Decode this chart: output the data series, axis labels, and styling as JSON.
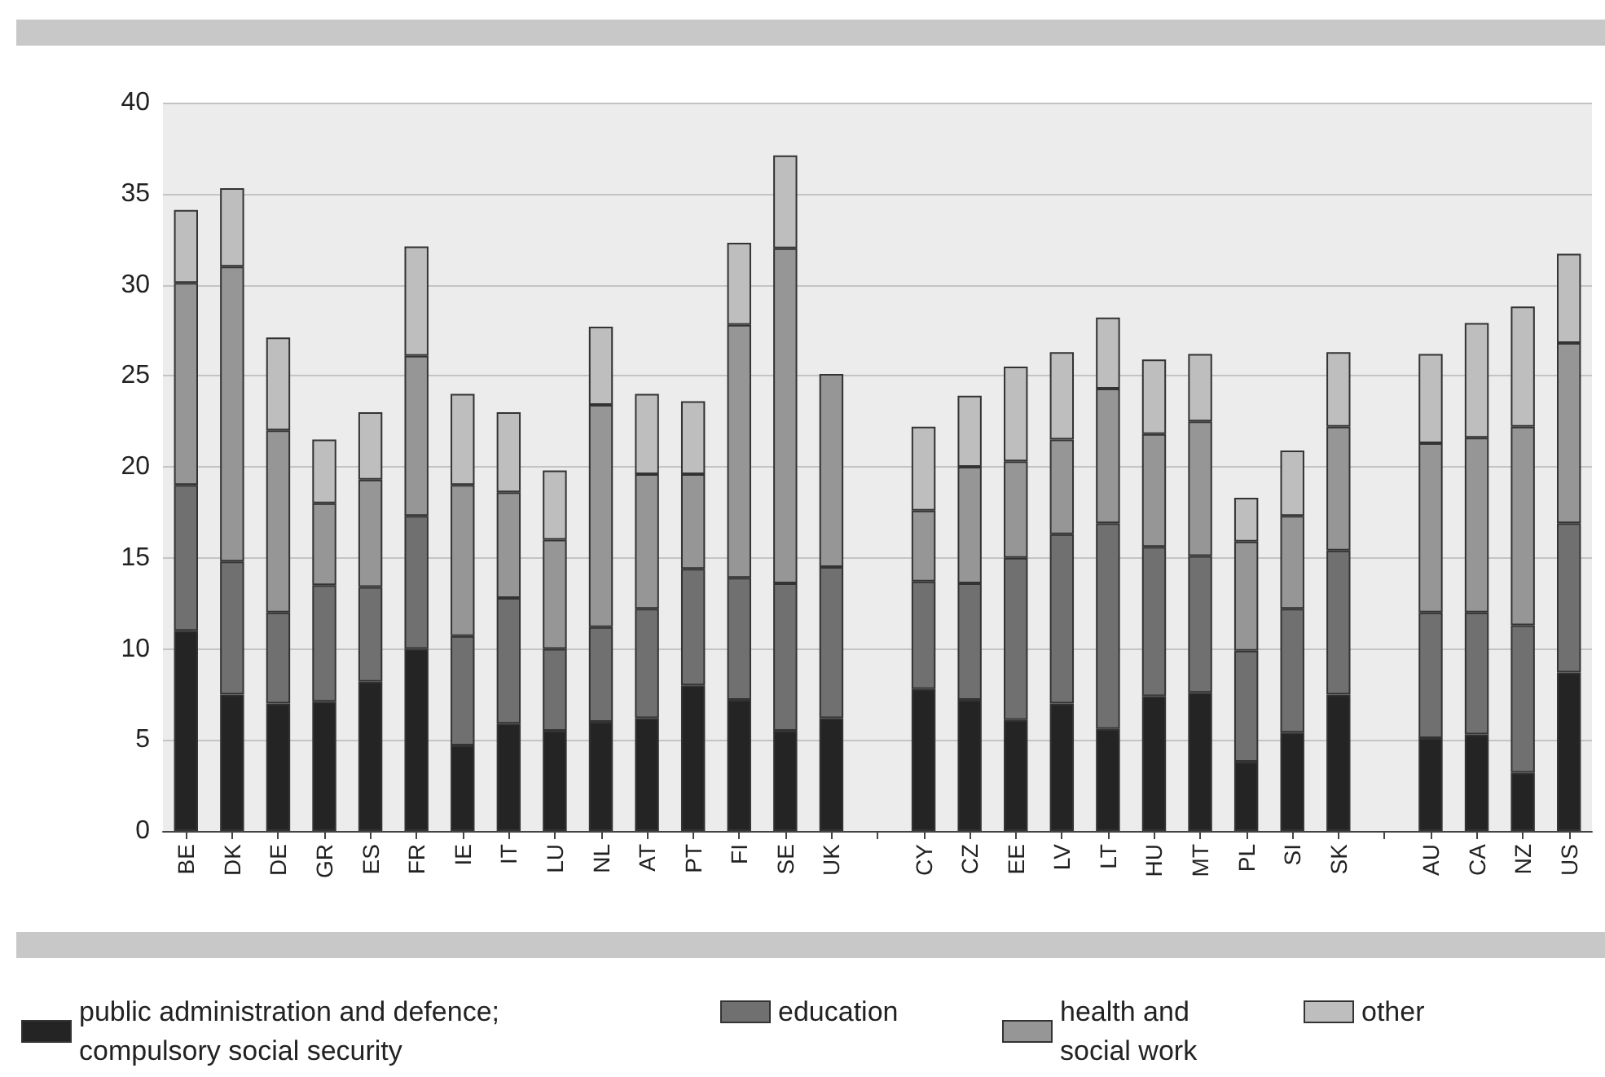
{
  "chart_data": {
    "type": "bar",
    "stacked": true,
    "categories": [
      "BE",
      "DK",
      "DE",
      "GR",
      "ES",
      "FR",
      "IE",
      "IT",
      "LU",
      "NL",
      "AT",
      "PT",
      "FI",
      "SE",
      "UK",
      null,
      "CY",
      "CZ",
      "EE",
      "LV",
      "LT",
      "HU",
      "MT",
      "PL",
      "SI",
      "SK",
      null,
      "AU",
      "CA",
      "NZ",
      "US"
    ],
    "series": [
      {
        "name": "public administration and defence; compulsory social security",
        "color": "#242424",
        "values": [
          11,
          7.5,
          7,
          7.1,
          8.2,
          10,
          4.7,
          5.9,
          5.5,
          6,
          6.2,
          8,
          7.2,
          5.5,
          6.2,
          null,
          7.8,
          7.2,
          6.1,
          7,
          5.6,
          7.4,
          7.6,
          3.8,
          5.4,
          7.5,
          null,
          5.1,
          5.3,
          3.2,
          8.7
        ]
      },
      {
        "name": "education",
        "color": "#707070",
        "values": [
          8,
          7.3,
          5,
          6.4,
          5.2,
          7.3,
          6,
          6.9,
          4.5,
          5.2,
          6,
          6.4,
          6.7,
          8.1,
          8.3,
          null,
          5.9,
          6.4,
          8.9,
          9.3,
          11.3,
          8.2,
          7.5,
          6.1,
          6.8,
          7.9,
          null,
          6.9,
          6.7,
          8.1,
          8.2
        ]
      },
      {
        "name": "health and social work",
        "color": "#969696",
        "values": [
          11.1,
          16.2,
          10,
          4.5,
          5.9,
          8.8,
          8.3,
          5.8,
          6,
          12.2,
          7.4,
          5.2,
          13.9,
          18.4,
          10.6,
          null,
          3.9,
          6.4,
          5.3,
          5.2,
          7.4,
          6.2,
          7.4,
          6,
          5.1,
          6.8,
          null,
          9.3,
          9.6,
          10.9,
          9.9
        ]
      },
      {
        "name": "other",
        "color": "#bebebe",
        "values": [
          4,
          4.3,
          5.1,
          3.5,
          3.7,
          6,
          5,
          4.4,
          3.8,
          4.3,
          4.4,
          4,
          4.5,
          5.1,
          null,
          null,
          4.6,
          3.9,
          5.2,
          4.8,
          3.9,
          4.1,
          3.7,
          2.4,
          3.6,
          4.1,
          null,
          4.9,
          6.3,
          6.6,
          4.9
        ]
      }
    ],
    "ylim": [
      0,
      40
    ],
    "yticks": [
      0,
      5,
      10,
      15,
      20,
      25,
      30,
      35,
      40
    ],
    "grid": "y",
    "legend": "bottom"
  }
}
